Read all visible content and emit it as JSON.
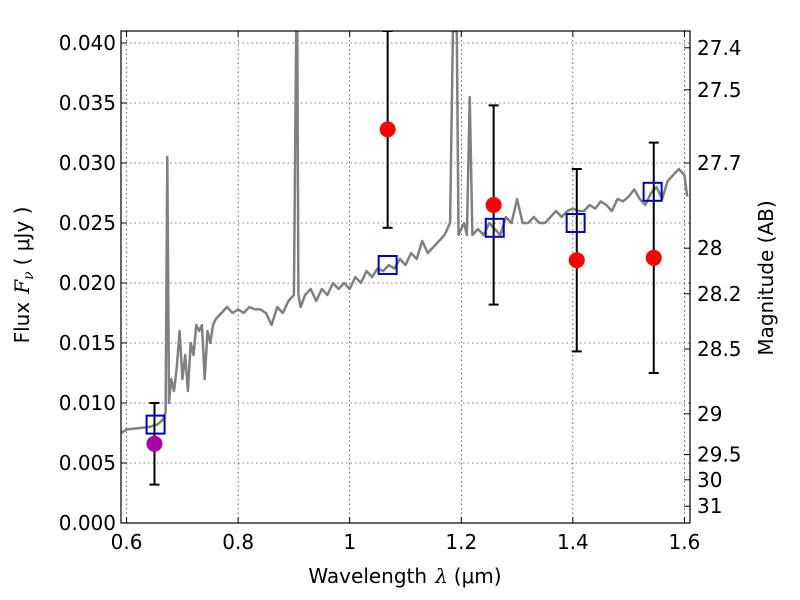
{
  "chart_data": {
    "type": "scatter",
    "xlabel_prefix": "Wavelength",
    "xlabel_symbol": "λ",
    "xlabel_unit": "(μm)",
    "ylabel_prefix": "Flux",
    "ylabel_symbol": "F",
    "ylabel_sub": "ν",
    "ylabel_unit": "( μJy )",
    "y2label": "Magnitude (AB)",
    "xlim": [
      0.59,
      1.61
    ],
    "ylim": [
      0.0,
      0.041
    ],
    "grid": true,
    "x_ticks": [
      {
        "v": 0.6,
        "label": "0.6"
      },
      {
        "v": 0.8,
        "label": "0.8"
      },
      {
        "v": 1.0,
        "label": "1"
      },
      {
        "v": 1.2,
        "label": "1.2"
      },
      {
        "v": 1.4,
        "label": "1.4"
      },
      {
        "v": 1.6,
        "label": "1.6"
      }
    ],
    "y_ticks": [
      {
        "v": 0.0,
        "label": "0.000"
      },
      {
        "v": 0.005,
        "label": "0.005"
      },
      {
        "v": 0.01,
        "label": "0.010"
      },
      {
        "v": 0.015,
        "label": "0.015"
      },
      {
        "v": 0.02,
        "label": "0.020"
      },
      {
        "v": 0.025,
        "label": "0.025"
      },
      {
        "v": 0.03,
        "label": "0.030"
      },
      {
        "v": 0.035,
        "label": "0.035"
      },
      {
        "v": 0.04,
        "label": "0.040"
      }
    ],
    "y2_ticks": [
      {
        "flux": 0.0396,
        "label": "27.4"
      },
      {
        "flux": 0.0361,
        "label": "27.5"
      },
      {
        "flux": 0.03,
        "label": "27.7"
      },
      {
        "flux": 0.0229,
        "label": "28"
      },
      {
        "flux": 0.0191,
        "label": "28.2"
      },
      {
        "flux": 0.0145,
        "label": "28.5"
      },
      {
        "flux": 0.0091,
        "label": "29"
      },
      {
        "flux": 0.0057,
        "label": "29.5"
      },
      {
        "flux": 0.0036,
        "label": "30"
      },
      {
        "flux": 0.0014,
        "label": "31"
      }
    ],
    "series": [
      {
        "kind": "line",
        "color": "#808080",
        "x": [
          0.59,
          0.6,
          0.62,
          0.64,
          0.655,
          0.665,
          0.67,
          0.673,
          0.676,
          0.68,
          0.685,
          0.69,
          0.695,
          0.7,
          0.705,
          0.71,
          0.715,
          0.72,
          0.725,
          0.73,
          0.735,
          0.74,
          0.745,
          0.75,
          0.755,
          0.76,
          0.77,
          0.78,
          0.79,
          0.8,
          0.81,
          0.82,
          0.83,
          0.84,
          0.85,
          0.86,
          0.87,
          0.88,
          0.89,
          0.9,
          0.904,
          0.906,
          0.908,
          0.912,
          0.92,
          0.93,
          0.94,
          0.95,
          0.96,
          0.97,
          0.98,
          0.99,
          1.0,
          1.01,
          1.02,
          1.03,
          1.04,
          1.05,
          1.06,
          1.07,
          1.08,
          1.09,
          1.1,
          1.11,
          1.12,
          1.13,
          1.14,
          1.15,
          1.16,
          1.17,
          1.18,
          1.185,
          1.188,
          1.192,
          1.195,
          1.2,
          1.205,
          1.21,
          1.215,
          1.22,
          1.23,
          1.24,
          1.25,
          1.26,
          1.27,
          1.28,
          1.29,
          1.3,
          1.31,
          1.32,
          1.33,
          1.34,
          1.35,
          1.36,
          1.37,
          1.38,
          1.39,
          1.4,
          1.41,
          1.42,
          1.43,
          1.44,
          1.45,
          1.46,
          1.47,
          1.48,
          1.49,
          1.5,
          1.51,
          1.52,
          1.53,
          1.54,
          1.55,
          1.56,
          1.57,
          1.58,
          1.59,
          1.6,
          1.605
        ],
        "y": [
          0.0075,
          0.0078,
          0.0079,
          0.008,
          0.0082,
          0.0086,
          0.0092,
          0.0305,
          0.01,
          0.012,
          0.011,
          0.013,
          0.016,
          0.012,
          0.014,
          0.011,
          0.015,
          0.014,
          0.0165,
          0.016,
          0.0165,
          0.012,
          0.016,
          0.015,
          0.0165,
          0.017,
          0.0175,
          0.018,
          0.0175,
          0.0178,
          0.0175,
          0.018,
          0.0178,
          0.0178,
          0.0175,
          0.0165,
          0.018,
          0.0175,
          0.0185,
          0.019,
          0.041,
          0.041,
          0.019,
          0.018,
          0.019,
          0.0195,
          0.0185,
          0.0195,
          0.019,
          0.02,
          0.0195,
          0.02,
          0.0195,
          0.0205,
          0.02,
          0.021,
          0.0205,
          0.0212,
          0.021,
          0.0215,
          0.0212,
          0.022,
          0.0215,
          0.0225,
          0.022,
          0.0235,
          0.0225,
          0.023,
          0.0235,
          0.024,
          0.025,
          0.041,
          0.041,
          0.041,
          0.024,
          0.0245,
          0.025,
          0.024,
          0.0355,
          0.024,
          0.0245,
          0.024,
          0.025,
          0.0245,
          0.024,
          0.0255,
          0.025,
          0.027,
          0.025,
          0.025,
          0.0255,
          0.025,
          0.025,
          0.0255,
          0.026,
          0.0255,
          0.026,
          0.0262,
          0.026,
          0.026,
          0.0265,
          0.0262,
          0.0268,
          0.0265,
          0.026,
          0.027,
          0.0268,
          0.0272,
          0.0278,
          0.027,
          0.0265,
          0.0275,
          0.028,
          0.027,
          0.0285,
          0.029,
          0.0295,
          0.029,
          0.0272
        ]
      },
      {
        "kind": "points-with-errors",
        "marker": "circle",
        "points": [
          {
            "x": 0.65,
            "y": 0.0066,
            "err": 0.0034,
            "color": "#aa00aa"
          },
          {
            "x": 1.068,
            "y": 0.0328,
            "err": 0.0082,
            "color": "#ff0000"
          },
          {
            "x": 1.258,
            "y": 0.0265,
            "err": 0.0083,
            "color": "#ff0000"
          },
          {
            "x": 1.407,
            "y": 0.0219,
            "err": 0.0076,
            "color": "#ff0000"
          },
          {
            "x": 1.545,
            "y": 0.0221,
            "err": 0.0096,
            "color": "#ff0000"
          }
        ]
      },
      {
        "kind": "points",
        "marker": "open-square",
        "color": "#0000cc",
        "points": [
          {
            "x": 0.652,
            "y": 0.0082
          },
          {
            "x": 1.068,
            "y": 0.0215
          },
          {
            "x": 1.26,
            "y": 0.0246
          },
          {
            "x": 1.405,
            "y": 0.025
          },
          {
            "x": 1.543,
            "y": 0.0276
          }
        ]
      }
    ]
  }
}
